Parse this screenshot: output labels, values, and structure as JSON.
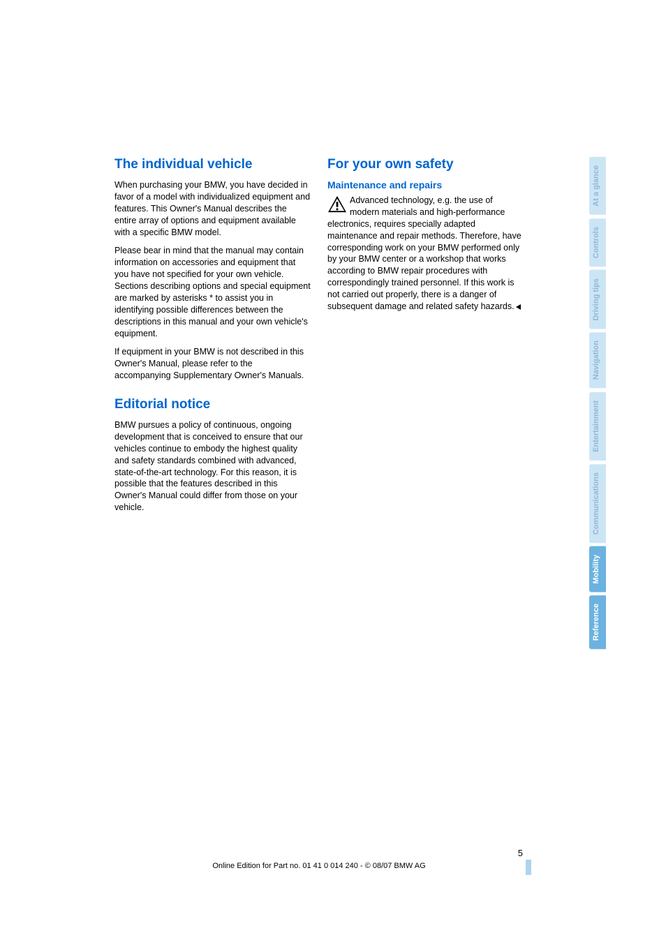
{
  "sections": {
    "individual_vehicle": {
      "heading": "The individual vehicle",
      "para1": "When purchasing your BMW, you have decided in favor of a model with individualized equipment and features. This Owner's Manual describes the entire array of options and equipment available with a specific BMW model.",
      "para2": "Please bear in mind that the manual may contain information on accessories and equipment that you have not specified for your own vehicle. Sections describing options and special equipment are marked by asterisks * to assist you in identifying possible differences between the descriptions in this manual and your own vehicle's equipment.",
      "para3": "If equipment in your BMW is not described in this Owner's Manual, please refer to the accompanying Supplementary Owner's Manuals."
    },
    "editorial": {
      "heading": "Editorial notice",
      "para1": "BMW pursues a policy of continuous, ongoing development that is conceived to ensure that our vehicles continue to embody the highest quality and safety standards combined with advanced, state-of-the-art technology. For this reason, it is possible that the features described in this Owner's Manual could differ from those on your vehicle."
    },
    "safety": {
      "heading": "For your own safety",
      "subheading": "Maintenance and repairs",
      "para1": "Advanced technology, e.g. the use of modern materials and high-performance electronics, requires specially adapted maintenance and repair methods. Therefore, have corresponding work on your BMW performed only by your BMW center or a workshop that works according to BMW repair procedures with correspondingly trained personnel. If this work is not carried out properly, there is a danger of subsequent damage and related safety hazards."
    }
  },
  "tabs": [
    {
      "label": "Reference",
      "active": true
    },
    {
      "label": "Mobility",
      "active": true
    },
    {
      "label": "Communications",
      "active": false
    },
    {
      "label": "Entertainment",
      "active": false
    },
    {
      "label": "Navigation",
      "active": false
    },
    {
      "label": "Driving tips",
      "active": false
    },
    {
      "label": "Controls",
      "active": false
    },
    {
      "label": "At a glance",
      "active": false
    }
  ],
  "footer": {
    "page_number": "5",
    "text": "Online Edition for Part no. 01 41 0 014 240 - © 08/07 BMW AG"
  },
  "colors": {
    "heading_color": "#0066cc",
    "tab_inactive_bg": "#cce5f5",
    "tab_inactive_fg": "#8fb8d6",
    "tab_active_bg": "#6bb2e0",
    "tab_active_fg": "#ffffff",
    "page_bar": "#aed4ed"
  }
}
